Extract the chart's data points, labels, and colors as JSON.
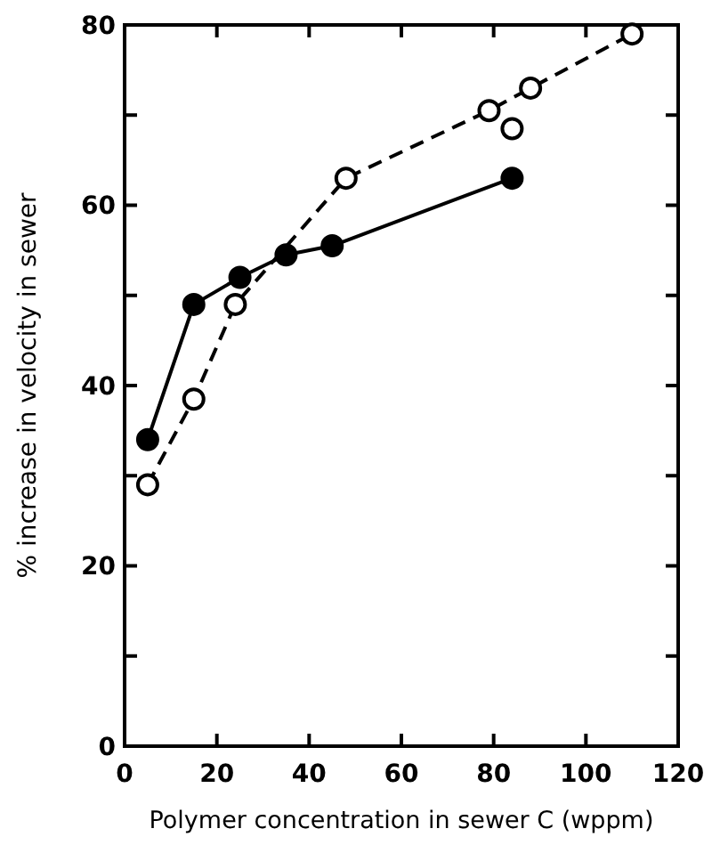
{
  "chart_data": {
    "type": "line",
    "xlabel": "Polymer concentration in sewer C (wppm)",
    "ylabel": "% increase in velocity in sewer",
    "xlim": [
      0,
      120
    ],
    "ylim": [
      0,
      80
    ],
    "xticks": [
      0,
      20,
      40,
      60,
      80,
      100,
      120
    ],
    "yticks": [
      0,
      {
        "value": 10,
        "label": null
      },
      20,
      {
        "value": 30,
        "label": null
      },
      40,
      {
        "value": 50,
        "label": null
      },
      60,
      {
        "value": 70,
        "label": null
      },
      80
    ],
    "grid": false,
    "marker": "circle",
    "series": [
      {
        "color": "#000000",
        "line_style": "solid",
        "x": [
          5,
          15,
          25,
          35,
          45,
          84
        ],
        "values": [
          34,
          49,
          52,
          54.5,
          55.5,
          63
        ]
      },
      {
        "color": "#000000",
        "line_style": "dashed",
        "x": [
          5,
          15,
          24,
          48,
          79,
          88,
          110
        ],
        "values": [
          29,
          38.5,
          49,
          63,
          70.5,
          73,
          79
        ]
      },
      {
        "type": "scatter",
        "color": "#000000",
        "line_style": "dashed",
        "x": [
          84
        ],
        "values": [
          68.5
        ]
      }
    ]
  }
}
